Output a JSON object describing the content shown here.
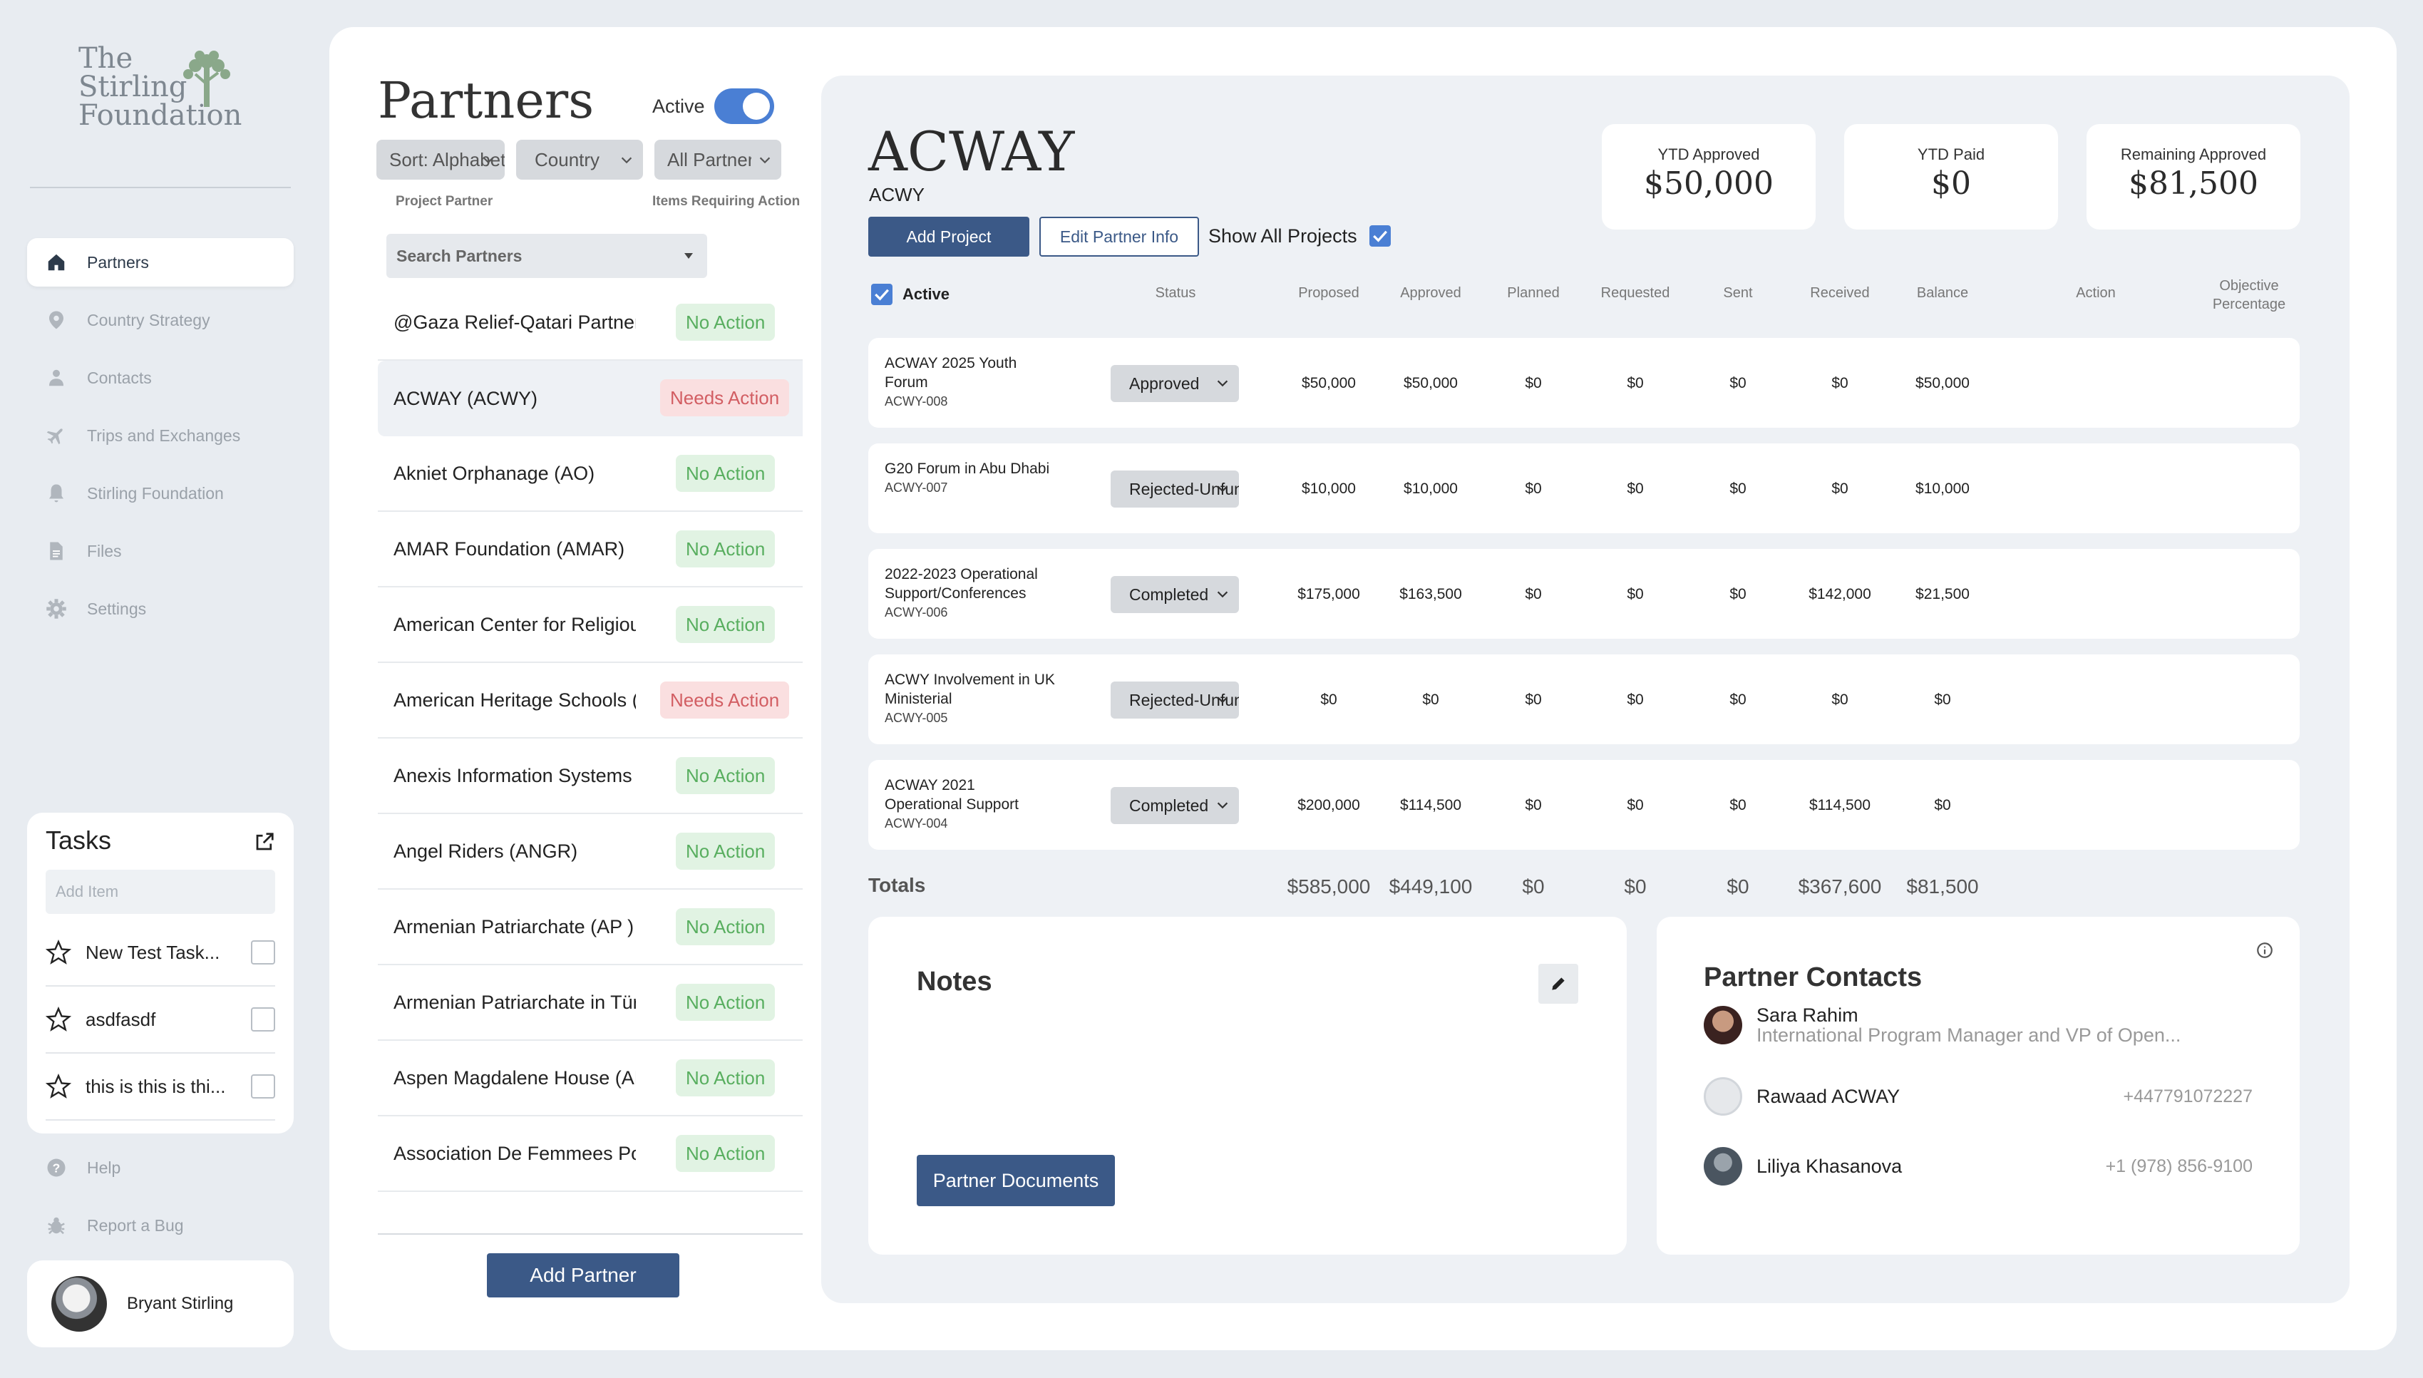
{
  "logo": {
    "line1": "The",
    "line2": "Stirling",
    "line3": "Foundation"
  },
  "nav": [
    {
      "label": "Partners",
      "icon": "home-icon",
      "active": true
    },
    {
      "label": "Country Strategy",
      "icon": "map-pin-icon"
    },
    {
      "label": "Contacts",
      "icon": "person-icon"
    },
    {
      "label": "Trips and Exchanges",
      "icon": "airplane-icon"
    },
    {
      "label": "Stirling Foundation",
      "icon": "bell-icon"
    },
    {
      "label": "Files",
      "icon": "file-icon"
    },
    {
      "label": "Settings",
      "icon": "gear-icon"
    }
  ],
  "tasks": {
    "title": "Tasks",
    "add_placeholder": "Add Item",
    "items": [
      "New Test Task...",
      "asdfasdf",
      "this is this is thi..."
    ]
  },
  "footer_nav": {
    "help": "Help",
    "report": "Report a Bug"
  },
  "user": {
    "name": "Bryant Stirling"
  },
  "partners": {
    "title": "Partners",
    "active_label": "Active",
    "filters": {
      "sort": "Sort: Alphabetical",
      "country": "Country",
      "all": "All Partners"
    },
    "col_project_partner": "Project Partner",
    "col_items": "Items Requiring Action",
    "search_placeholder": "Search Partners",
    "list": [
      {
        "name": "@Gaza Relief-Qatari Partner",
        "status": "No Action"
      },
      {
        "name": "ACWAY (ACWY)",
        "status": "Needs Action"
      },
      {
        "name": "Akniet Orphanage (AO)",
        "status": "No Action"
      },
      {
        "name": "AMAR Foundation (AMAR)",
        "status": "No Action"
      },
      {
        "name": "American Center for Religious",
        "status": "No Action"
      },
      {
        "name": "American Heritage Schools (AHS)",
        "status": "Needs Action"
      },
      {
        "name": "Anexis Information Systems",
        "status": "No Action"
      },
      {
        "name": "Angel Riders (ANGR)",
        "status": "No Action"
      },
      {
        "name": "Armenian Patriarchate (AP )",
        "status": "No Action"
      },
      {
        "name": "Armenian Patriarchate in Türkiye",
        "status": "No Action"
      },
      {
        "name": "Aspen Magdalene House (AMH)",
        "status": "No Action"
      },
      {
        "name": "Association De Femmees Pour",
        "status": "No Action"
      }
    ],
    "add_button": "Add Partner"
  },
  "detail": {
    "title": "ACWAY",
    "code": "ACWY",
    "add_project": "Add Project",
    "edit_partner": "Edit Partner Info",
    "show_all": "Show All Projects",
    "kpis": [
      {
        "label": "YTD Approved",
        "value": "$50,000"
      },
      {
        "label": "YTD Paid",
        "value": "$0"
      },
      {
        "label": "Remaining Approved",
        "value": "$81,500"
      }
    ],
    "headers": {
      "active": "Active",
      "status": "Status",
      "proposed": "Proposed",
      "approved": "Approved",
      "planned": "Planned",
      "requested": "Requested",
      "sent": "Sent",
      "received": "Received",
      "balance": "Balance",
      "action": "Action",
      "objective1": "Objective",
      "objective2": "Percentage"
    },
    "projects": [
      {
        "name": "ACWAY 2025 Youth Forum",
        "id": "ACWY-008",
        "status": "Approved",
        "proposed": "$50,000",
        "approved": "$50,000",
        "planned": "$0",
        "requested": "$0",
        "sent": "$0",
        "received": "$0",
        "balance": "$50,000"
      },
      {
        "name": "G20 Forum in Abu Dhabi",
        "id": "ACWY-007",
        "status": "Rejected-Unfunded",
        "proposed": "$10,000",
        "approved": "$10,000",
        "planned": "$0",
        "requested": "$0",
        "sent": "$0",
        "received": "$0",
        "balance": "$10,000"
      },
      {
        "name": "2022-2023 Operational Support/Conferences",
        "id": "ACWY-006",
        "status": "Completed",
        "proposed": "$175,000",
        "approved": "$163,500",
        "planned": "$0",
        "requested": "$0",
        "sent": "$0",
        "received": "$142,000",
        "balance": "$21,500"
      },
      {
        "name": "ACWY Involvement in UK Ministerial",
        "id": "ACWY-005",
        "status": "Rejected-Unfunded",
        "proposed": "$0",
        "approved": "$0",
        "planned": "$0",
        "requested": "$0",
        "sent": "$0",
        "received": "$0",
        "balance": "$0"
      },
      {
        "name": "ACWAY 2021 Operational Support",
        "id": "ACWY-004",
        "status": "Completed",
        "proposed": "$200,000",
        "approved": "$114,500",
        "planned": "$0",
        "requested": "$0",
        "sent": "$0",
        "received": "$114,500",
        "balance": "$0"
      }
    ],
    "totals": {
      "label": "Totals",
      "proposed": "$585,000",
      "approved": "$449,100",
      "planned": "$0",
      "requested": "$0",
      "sent": "$0",
      "received": "$367,600",
      "balance": "$81,500"
    },
    "notes": {
      "title": "Notes",
      "documents_button": "Partner Documents"
    },
    "contacts": {
      "title": "Partner Contacts",
      "list": [
        {
          "name": "Sara Rahim",
          "role": "International Program Manager and VP of Open...",
          "phone": ""
        },
        {
          "name": "Rawaad ACWAY",
          "role": "",
          "phone": "+447791072227"
        },
        {
          "name": "Liliya Khasanova",
          "role": "",
          "phone": "+1 (978) 856-9100"
        }
      ]
    }
  },
  "colors": {
    "accent": "#3b5987",
    "toggle": "#4a7fd4",
    "ok_bg": "#e1f3e3",
    "ok_fg": "#58ae5f",
    "need_bg": "#fadfe0",
    "need_fg": "#d25e63"
  }
}
